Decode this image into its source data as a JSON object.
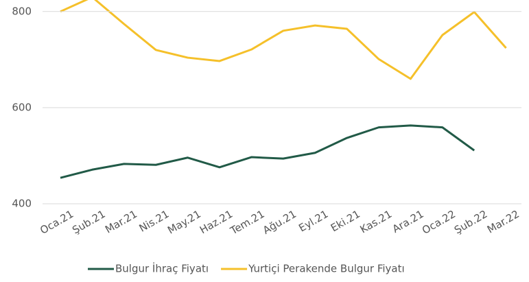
{
  "chart_data": {
    "type": "line",
    "categories": [
      "Oca.21",
      "Şub.21",
      "Mar.21",
      "Nis.21",
      "May.21",
      "Haz.21",
      "Tem.21",
      "Ağu.21",
      "Eyl.21",
      "Eki.21",
      "Kas.21",
      "Ara.21",
      "Oca.22",
      "Şub.22",
      "Mar.22"
    ],
    "series": [
      {
        "name": "Bulgur İhraç Fiyatı",
        "color": "#215a47",
        "values": [
          454,
          471,
          483,
          481,
          496,
          476,
          497,
          494,
          506,
          537,
          559,
          563,
          559,
          511,
          null
        ]
      },
      {
        "name": "Yurtiçi Perakende Bulgur Fiyatı",
        "color": "#f5c02a",
        "values": [
          800,
          830,
          774,
          720,
          704,
          697,
          721,
          760,
          771,
          764,
          701,
          660,
          751,
          799,
          724
        ]
      }
    ],
    "ylim": [
      400,
      824
    ],
    "yticks": [
      400,
      600,
      800
    ],
    "grid": true,
    "legend": "bottom"
  }
}
